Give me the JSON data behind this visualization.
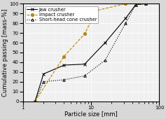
{
  "title": "",
  "xlabel": "Particle size [mm]",
  "ylabel": "Cumulative passing [mass-%]",
  "xlim": [
    1,
    100
  ],
  "ylim": [
    0,
    100
  ],
  "jaw_crusher": {
    "x": [
      1.5,
      2,
      4,
      8,
      16,
      32,
      45,
      63
    ],
    "y": [
      0,
      28,
      37,
      38,
      60,
      85,
      99,
      100
    ],
    "color": "black",
    "linestyle": "-",
    "marker": "x",
    "label": "Jaw crusher"
  },
  "impact_crusher": {
    "x": [
      1.5,
      4,
      8,
      12,
      32,
      45,
      63
    ],
    "y": [
      0,
      46,
      69,
      93,
      100,
      100,
      100
    ],
    "color": "#b8860b",
    "linestyle": "-.",
    "marker": "o",
    "label": "Impact crusher"
  },
  "short_head_cone_crusher": {
    "x": [
      1.5,
      2,
      4,
      8,
      16,
      32,
      45,
      63
    ],
    "y": [
      0,
      20,
      22,
      26,
      42,
      80,
      99,
      100
    ],
    "color": "black",
    "linestyle": ":",
    "marker": "^",
    "label": "Short-head cone crusher"
  },
  "legend_loc": "upper left",
  "background_color": "#d8d8d8",
  "plot_background": "#f0f0f0",
  "grid_color": "#ffffff",
  "tick_fontsize": 5,
  "label_fontsize": 6,
  "legend_fontsize": 4.8
}
